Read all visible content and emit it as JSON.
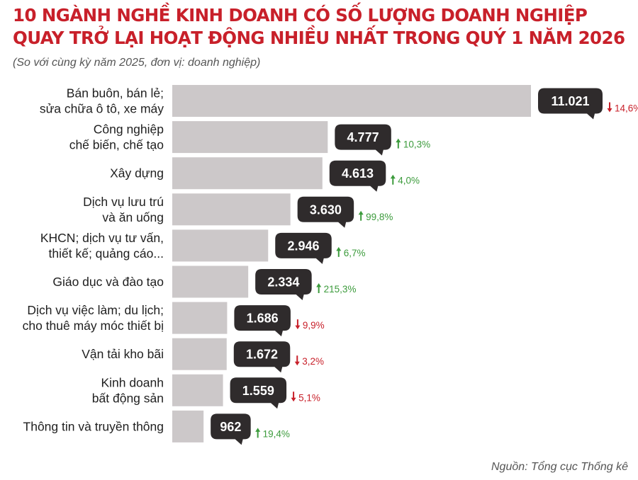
{
  "title_lines": [
    "10 NGÀNH NGHỀ KINH DOANH CÓ SỐ LƯỢNG DOANH NGHIỆP",
    "QUAY TRỞ LẠI HOẠT ĐỘNG NHIỀU NHẤT TRONG QUÝ 1 NĂM 2026"
  ],
  "subtitle": "(So với cùng kỳ năm 2025, đơn vị: doanh nghiệp)",
  "source": "Nguồn: Tổng cục Thống kê",
  "colors": {
    "title": "#c8202a",
    "bar": "#ccc8c9",
    "label_box": "#2f2b2c",
    "up": "#3c9b3c",
    "down": "#c8202a"
  },
  "chart_data": {
    "type": "bar",
    "orientation": "horizontal",
    "title": "10 NGÀNH NGHỀ KINH DOANH CÓ SỐ LƯỢNG DOANH NGHIỆP QUAY TRỞ LẠI HOẠT ĐỘNG NHIỀU NHẤT TRONG QUÝ 1 NĂM 2026",
    "subtitle": "(So với cùng kỳ năm 2025, đơn vị: doanh nghiệp)",
    "grid": false,
    "categories": [
      [
        "Bán buôn, bán lẻ;",
        "sửa chữa ô tô, xe máy"
      ],
      [
        "Công nghiệp",
        "chế biến, chế tạo"
      ],
      [
        "Xây dựng"
      ],
      [
        "Dịch vụ lưu trú",
        "và ăn uống"
      ],
      [
        "KHCN; dịch vụ tư vấn,",
        "thiết kế; quảng cáo..."
      ],
      [
        "Giáo dục và đào tạo"
      ],
      [
        "Dịch vụ việc làm; du lịch;",
        "cho thuê máy móc thiết bị"
      ],
      [
        "Vận tải kho bãi"
      ],
      [
        "Kinh doanh",
        "bất động sản"
      ],
      [
        "Thông tin và truyền thông"
      ]
    ],
    "values": [
      11021,
      4777,
      4613,
      3630,
      2946,
      2334,
      1686,
      1672,
      1559,
      962
    ],
    "value_labels": [
      "11.021",
      "4.777",
      "4.613",
      "3.630",
      "2.946",
      "2.334",
      "1.686",
      "1.672",
      "1.559",
      "962"
    ],
    "changes": [
      {
        "direction": "down",
        "label": "14,6%"
      },
      {
        "direction": "up",
        "label": "10,3%"
      },
      {
        "direction": "up",
        "label": "4,0%"
      },
      {
        "direction": "up",
        "label": "99,8%"
      },
      {
        "direction": "up",
        "label": "6,7%"
      },
      {
        "direction": "up",
        "label": "215,3%"
      },
      {
        "direction": "down",
        "label": "9,9%"
      },
      {
        "direction": "down",
        "label": "3,2%"
      },
      {
        "direction": "down",
        "label": "5,1%"
      },
      {
        "direction": "up",
        "label": "19,4%"
      }
    ]
  }
}
